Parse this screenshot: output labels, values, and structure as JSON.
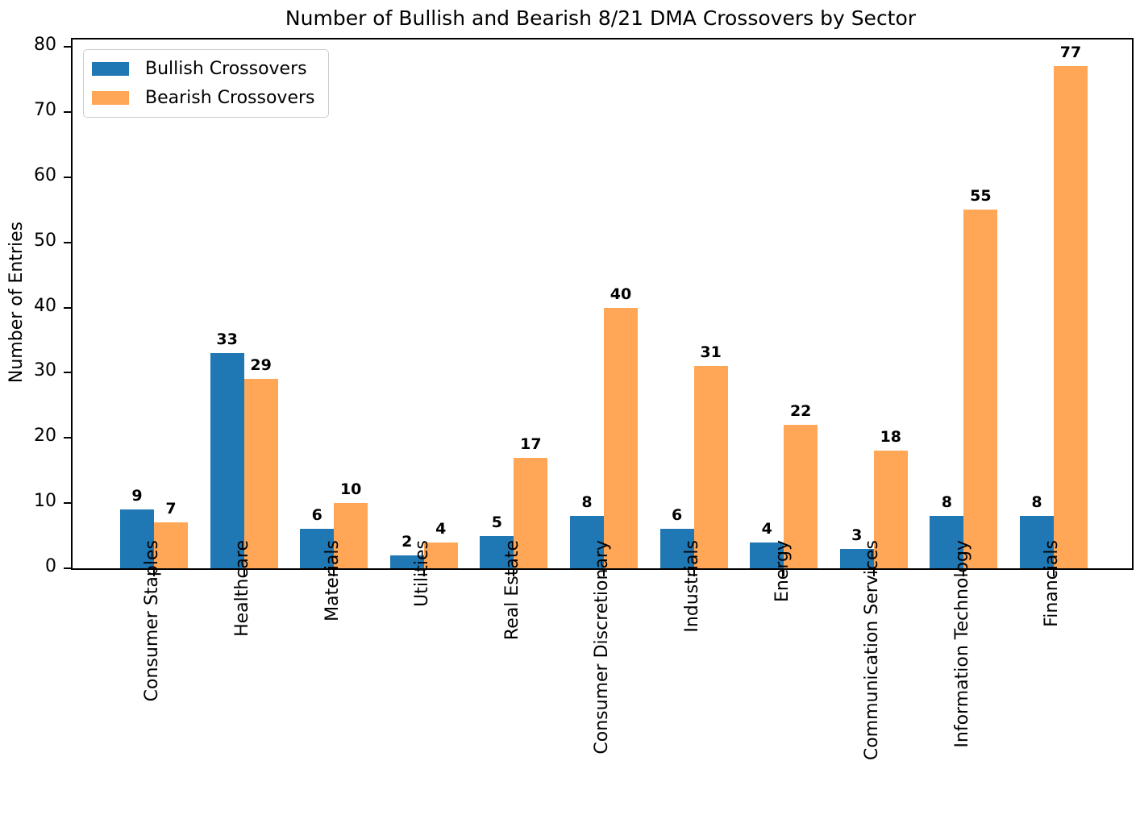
{
  "chart_data": {
    "type": "bar",
    "title": "Number of Bullish and Bearish 8/21 DMA Crossovers by Sector",
    "xlabel": "",
    "ylabel": "Number of Entries",
    "categories": [
      "Consumer Staples",
      "Healthcare",
      "Materials",
      "Utilities",
      "Real Estate",
      "Consumer Discretionary",
      "Industrials",
      "Energy",
      "Communication Services",
      "Information Technology",
      "Financials"
    ],
    "series": [
      {
        "name": "Bullish Crossovers",
        "color": "#1f77b4",
        "values": [
          9,
          33,
          6,
          2,
          5,
          8,
          6,
          4,
          3,
          8,
          8
        ]
      },
      {
        "name": "Bearish Crossovers",
        "color": "#ffa756",
        "values": [
          7,
          29,
          10,
          4,
          17,
          40,
          31,
          22,
          18,
          55,
          77
        ]
      }
    ],
    "ylim": [
      0,
      80
    ],
    "yticks": [
      0,
      10,
      20,
      30,
      40,
      50,
      60,
      70,
      80
    ],
    "bar_value_labels": true,
    "grid": false,
    "legend_position": "upper left"
  }
}
